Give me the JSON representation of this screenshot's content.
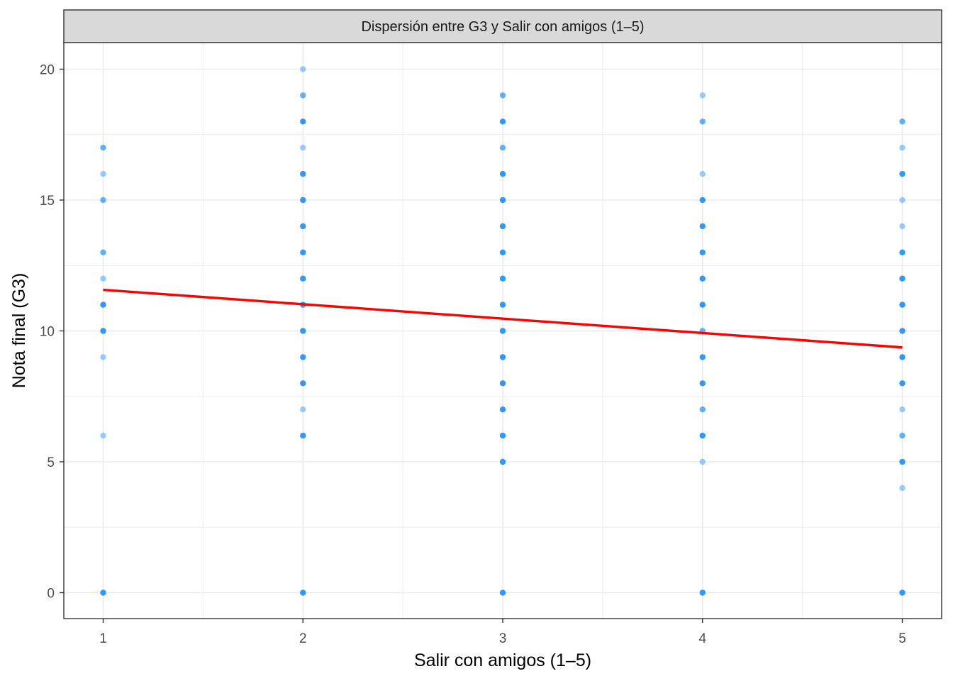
{
  "chart_data": {
    "type": "scatter",
    "facet_title": "Dispersión entre G3 y Salir con amigos (1–5)",
    "xlabel": "Salir con amigos (1–5)",
    "ylabel": "Nota final (G3)",
    "xlim": [
      0.8,
      5.2
    ],
    "ylim": [
      -1,
      21
    ],
    "x_ticks": [
      1,
      2,
      3,
      4,
      5
    ],
    "x_tick_labels": [
      "1",
      "2",
      "3",
      "4",
      "5"
    ],
    "y_ticks": [
      0,
      5,
      10,
      15,
      20
    ],
    "y_tick_labels": [
      "0",
      "5",
      "10",
      "15",
      "20"
    ],
    "grid": true,
    "colors": {
      "points": "#1E90FF",
      "trend": "#FF0000",
      "strip_background": "#D9D9D9",
      "grid": "#EBEBEB",
      "border": "#333333"
    },
    "points": [
      {
        "x": 1,
        "y": 0,
        "density": "high"
      },
      {
        "x": 1,
        "y": 6,
        "density": "low"
      },
      {
        "x": 1,
        "y": 9,
        "density": "low"
      },
      {
        "x": 1,
        "y": 10,
        "density": "high"
      },
      {
        "x": 1,
        "y": 11,
        "density": "high"
      },
      {
        "x": 1,
        "y": 12,
        "density": "low"
      },
      {
        "x": 1,
        "y": 13,
        "density": "medium"
      },
      {
        "x": 1,
        "y": 15,
        "density": "medium"
      },
      {
        "x": 1,
        "y": 16,
        "density": "low"
      },
      {
        "x": 1,
        "y": 17,
        "density": "medium"
      },
      {
        "x": 2,
        "y": 0,
        "density": "high"
      },
      {
        "x": 2,
        "y": 6,
        "density": "high"
      },
      {
        "x": 2,
        "y": 7,
        "density": "low"
      },
      {
        "x": 2,
        "y": 8,
        "density": "high"
      },
      {
        "x": 2,
        "y": 9,
        "density": "high"
      },
      {
        "x": 2,
        "y": 10,
        "density": "high"
      },
      {
        "x": 2,
        "y": 11,
        "density": "high"
      },
      {
        "x": 2,
        "y": 12,
        "density": "high"
      },
      {
        "x": 2,
        "y": 13,
        "density": "high"
      },
      {
        "x": 2,
        "y": 14,
        "density": "high"
      },
      {
        "x": 2,
        "y": 15,
        "density": "high"
      },
      {
        "x": 2,
        "y": 16,
        "density": "high"
      },
      {
        "x": 2,
        "y": 17,
        "density": "low"
      },
      {
        "x": 2,
        "y": 18,
        "density": "high"
      },
      {
        "x": 2,
        "y": 19,
        "density": "medium"
      },
      {
        "x": 2,
        "y": 20,
        "density": "low"
      },
      {
        "x": 3,
        "y": 0,
        "density": "high"
      },
      {
        "x": 3,
        "y": 5,
        "density": "high"
      },
      {
        "x": 3,
        "y": 6,
        "density": "high"
      },
      {
        "x": 3,
        "y": 7,
        "density": "high"
      },
      {
        "x": 3,
        "y": 8,
        "density": "high"
      },
      {
        "x": 3,
        "y": 9,
        "density": "high"
      },
      {
        "x": 3,
        "y": 10,
        "density": "high"
      },
      {
        "x": 3,
        "y": 11,
        "density": "high"
      },
      {
        "x": 3,
        "y": 12,
        "density": "high"
      },
      {
        "x": 3,
        "y": 13,
        "density": "high"
      },
      {
        "x": 3,
        "y": 14,
        "density": "high"
      },
      {
        "x": 3,
        "y": 15,
        "density": "high"
      },
      {
        "x": 3,
        "y": 16,
        "density": "high"
      },
      {
        "x": 3,
        "y": 17,
        "density": "medium"
      },
      {
        "x": 3,
        "y": 18,
        "density": "high"
      },
      {
        "x": 3,
        "y": 19,
        "density": "medium"
      },
      {
        "x": 4,
        "y": 0,
        "density": "high"
      },
      {
        "x": 4,
        "y": 5,
        "density": "low"
      },
      {
        "x": 4,
        "y": 6,
        "density": "high"
      },
      {
        "x": 4,
        "y": 7,
        "density": "medium"
      },
      {
        "x": 4,
        "y": 8,
        "density": "high"
      },
      {
        "x": 4,
        "y": 9,
        "density": "high"
      },
      {
        "x": 4,
        "y": 10,
        "density": "medium"
      },
      {
        "x": 4,
        "y": 11,
        "density": "high"
      },
      {
        "x": 4,
        "y": 12,
        "density": "high"
      },
      {
        "x": 4,
        "y": 13,
        "density": "high"
      },
      {
        "x": 4,
        "y": 14,
        "density": "high"
      },
      {
        "x": 4,
        "y": 15,
        "density": "high"
      },
      {
        "x": 4,
        "y": 16,
        "density": "low"
      },
      {
        "x": 4,
        "y": 18,
        "density": "medium"
      },
      {
        "x": 4,
        "y": 19,
        "density": "low"
      },
      {
        "x": 5,
        "y": 0,
        "density": "high"
      },
      {
        "x": 5,
        "y": 4,
        "density": "low"
      },
      {
        "x": 5,
        "y": 5,
        "density": "high"
      },
      {
        "x": 5,
        "y": 6,
        "density": "medium"
      },
      {
        "x": 5,
        "y": 7,
        "density": "low"
      },
      {
        "x": 5,
        "y": 8,
        "density": "high"
      },
      {
        "x": 5,
        "y": 9,
        "density": "high"
      },
      {
        "x": 5,
        "y": 10,
        "density": "high"
      },
      {
        "x": 5,
        "y": 11,
        "density": "high"
      },
      {
        "x": 5,
        "y": 12,
        "density": "high"
      },
      {
        "x": 5,
        "y": 13,
        "density": "high"
      },
      {
        "x": 5,
        "y": 14,
        "density": "low"
      },
      {
        "x": 5,
        "y": 15,
        "density": "low"
      },
      {
        "x": 5,
        "y": 16,
        "density": "high"
      },
      {
        "x": 5,
        "y": 17,
        "density": "low"
      },
      {
        "x": 5,
        "y": 18,
        "density": "medium"
      }
    ],
    "trend_line": {
      "method": "linear",
      "x": [
        1,
        5
      ],
      "y": [
        11.57,
        9.37
      ]
    }
  }
}
